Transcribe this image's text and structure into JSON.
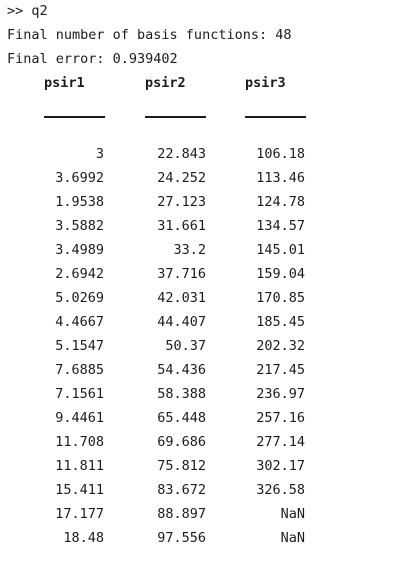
{
  "console": {
    "prompt_line": ">> q2",
    "basis_line": "Final number of basis functions: 48",
    "error_line": "Final error: 0.939402"
  },
  "table": {
    "headers": [
      "psir1",
      "psir2",
      "psir3"
    ],
    "rows": [
      [
        "3",
        "22.843",
        "106.18"
      ],
      [
        "3.6992",
        "24.252",
        "113.46"
      ],
      [
        "1.9538",
        "27.123",
        "124.78"
      ],
      [
        "3.5882",
        "31.661",
        "134.57"
      ],
      [
        "3.4989",
        "33.2",
        "145.01"
      ],
      [
        "2.6942",
        "37.716",
        "159.04"
      ],
      [
        "5.0269",
        "42.031",
        "170.85"
      ],
      [
        "4.4667",
        "44.407",
        "185.45"
      ],
      [
        "5.1547",
        "50.37",
        "202.32"
      ],
      [
        "7.6885",
        "54.436",
        "217.45"
      ],
      [
        "7.1561",
        "58.388",
        "236.97"
      ],
      [
        "9.4461",
        "65.448",
        "257.16"
      ],
      [
        "11.708",
        "69.686",
        "277.14"
      ],
      [
        "11.811",
        "75.812",
        "302.17"
      ],
      [
        "15.411",
        "83.672",
        "326.58"
      ],
      [
        "17.177",
        "88.897",
        "NaN"
      ],
      [
        "18.48",
        "97.556",
        "NaN"
      ]
    ]
  }
}
